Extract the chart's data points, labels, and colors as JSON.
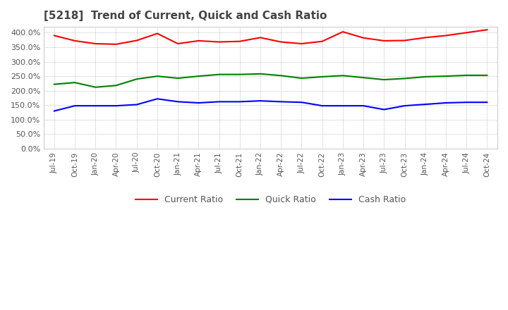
{
  "title": "[5218]  Trend of Current, Quick and Cash Ratio",
  "title_fontsize": 11,
  "title_color": "#444444",
  "background_color": "#ffffff",
  "plot_bg_color": "#ffffff",
  "grid_color": "#aaaaaa",
  "ylim": [
    0,
    420
  ],
  "yticks": [
    0,
    50,
    100,
    150,
    200,
    250,
    300,
    350,
    400
  ],
  "ytick_labels": [
    "0.0%",
    "50.0%",
    "100.0%",
    "150.0%",
    "200.0%",
    "250.0%",
    "300.0%",
    "350.0%",
    "400.0%"
  ],
  "xtick_labels": [
    "Jul-19",
    "Oct-19",
    "Jan-20",
    "Apr-20",
    "Jul-20",
    "Oct-20",
    "Jan-21",
    "Apr-21",
    "Jul-21",
    "Oct-21",
    "Jan-22",
    "Apr-22",
    "Jul-22",
    "Oct-22",
    "Jan-23",
    "Apr-23",
    "Jul-23",
    "Oct-23",
    "Jan-24",
    "Apr-24",
    "Jul-24",
    "Oct-24"
  ],
  "current_ratio": [
    390,
    372,
    362,
    360,
    373,
    397,
    362,
    372,
    368,
    370,
    383,
    368,
    362,
    370,
    403,
    382,
    372,
    373,
    383,
    390,
    400,
    410
  ],
  "quick_ratio": [
    222,
    228,
    212,
    218,
    240,
    250,
    243,
    250,
    256,
    256,
    258,
    252,
    243,
    248,
    252,
    245,
    238,
    242,
    248,
    250,
    253,
    253
  ],
  "cash_ratio": [
    130,
    148,
    148,
    148,
    152,
    172,
    162,
    158,
    162,
    162,
    165,
    162,
    160,
    148,
    148,
    148,
    135,
    148,
    153,
    158,
    160,
    160
  ],
  "current_color": "#ff0000",
  "quick_color": "#008000",
  "cash_color": "#0000ff",
  "legend_labels": [
    "Current Ratio",
    "Quick Ratio",
    "Cash Ratio"
  ],
  "line_width": 1.5
}
